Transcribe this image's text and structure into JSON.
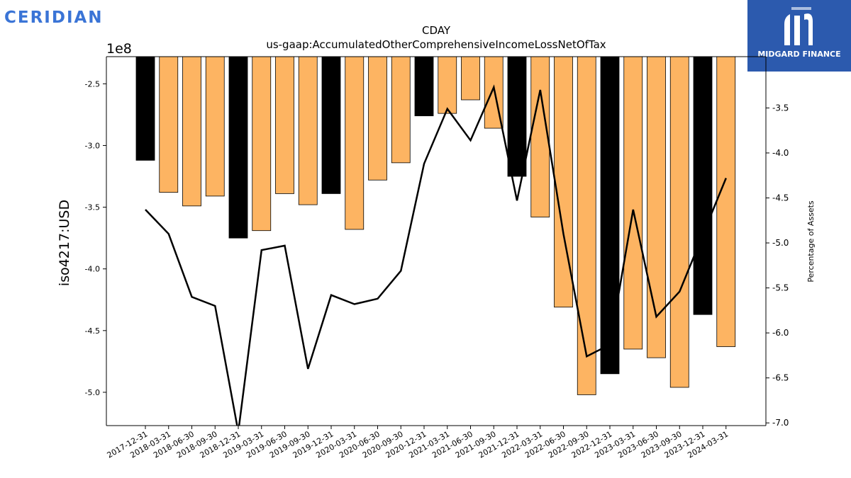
{
  "brand": {
    "left_logo_text": "CERIDIAN",
    "right_logo_text": "MIDGARD FINANCE"
  },
  "colors": {
    "bar_highlight": "#000000",
    "bar_normal": "#fdb462",
    "line": "#000000",
    "brand_left": "#3a74d6",
    "brand_right_bg": "#2c5aae"
  },
  "chart_data": {
    "type": "bar",
    "title": "CDAY",
    "subtitle": "us-gaap:AccumulatedOtherComprehensiveIncomeLossNetOfTax",
    "ylabel": "iso4217:USD",
    "y_offset_label": "1e8",
    "y2label": "Percentage of Assets",
    "categories": [
      "2017-12-31",
      "2018-03-31",
      "2018-06-30",
      "2018-09-30",
      "2018-12-31",
      "2019-03-31",
      "2019-06-30",
      "2019-09-30",
      "2019-12-31",
      "2020-03-31",
      "2020-06-30",
      "2020-09-30",
      "2020-12-31",
      "2021-03-31",
      "2021-06-30",
      "2021-09-30",
      "2021-12-31",
      "2022-03-31",
      "2022-06-30",
      "2022-09-30",
      "2022-12-31",
      "2023-03-31",
      "2023-06-30",
      "2023-09-30",
      "2023-12-31",
      "2024-03-31"
    ],
    "series": [
      {
        "type": "bar",
        "values": [
          -3.12,
          -3.38,
          -3.49,
          -3.41,
          -3.75,
          -3.69,
          -3.39,
          -3.48,
          -3.39,
          -3.68,
          -3.28,
          -3.14,
          -2.76,
          -2.74,
          -2.63,
          -2.86,
          -3.25,
          -3.58,
          -4.31,
          -5.02,
          -4.85,
          -4.65,
          -4.72,
          -4.96,
          -4.37,
          -4.63
        ],
        "highlight": [
          true,
          false,
          false,
          false,
          true,
          false,
          false,
          false,
          true,
          false,
          false,
          false,
          true,
          false,
          false,
          false,
          true,
          false,
          false,
          false,
          true,
          false,
          false,
          false,
          true,
          false
        ]
      },
      {
        "type": "line",
        "axis": "right",
        "values": [
          -4.63,
          -4.9,
          -5.6,
          -5.7,
          -7.1,
          -5.08,
          -5.03,
          -6.4,
          -5.58,
          -5.68,
          -5.62,
          -5.31,
          -4.12,
          -3.51,
          -3.86,
          -3.27,
          -4.53,
          -3.3,
          -4.9,
          -6.26,
          -6.13,
          -4.63,
          -5.82,
          -5.54,
          -4.91,
          -4.28
        ]
      }
    ],
    "ylim": [
      -5.27,
      -2.28
    ],
    "yticks": [
      -2.5,
      -3.0,
      -3.5,
      -4.0,
      -4.5,
      -5.0
    ],
    "y2lim": [
      -7.03,
      -2.93
    ],
    "y2ticks": [
      -3.5,
      -4.0,
      -4.5,
      -5.0,
      -5.5,
      -6.0,
      -6.5,
      -7.0
    ],
    "grid": false,
    "legend": "none"
  }
}
